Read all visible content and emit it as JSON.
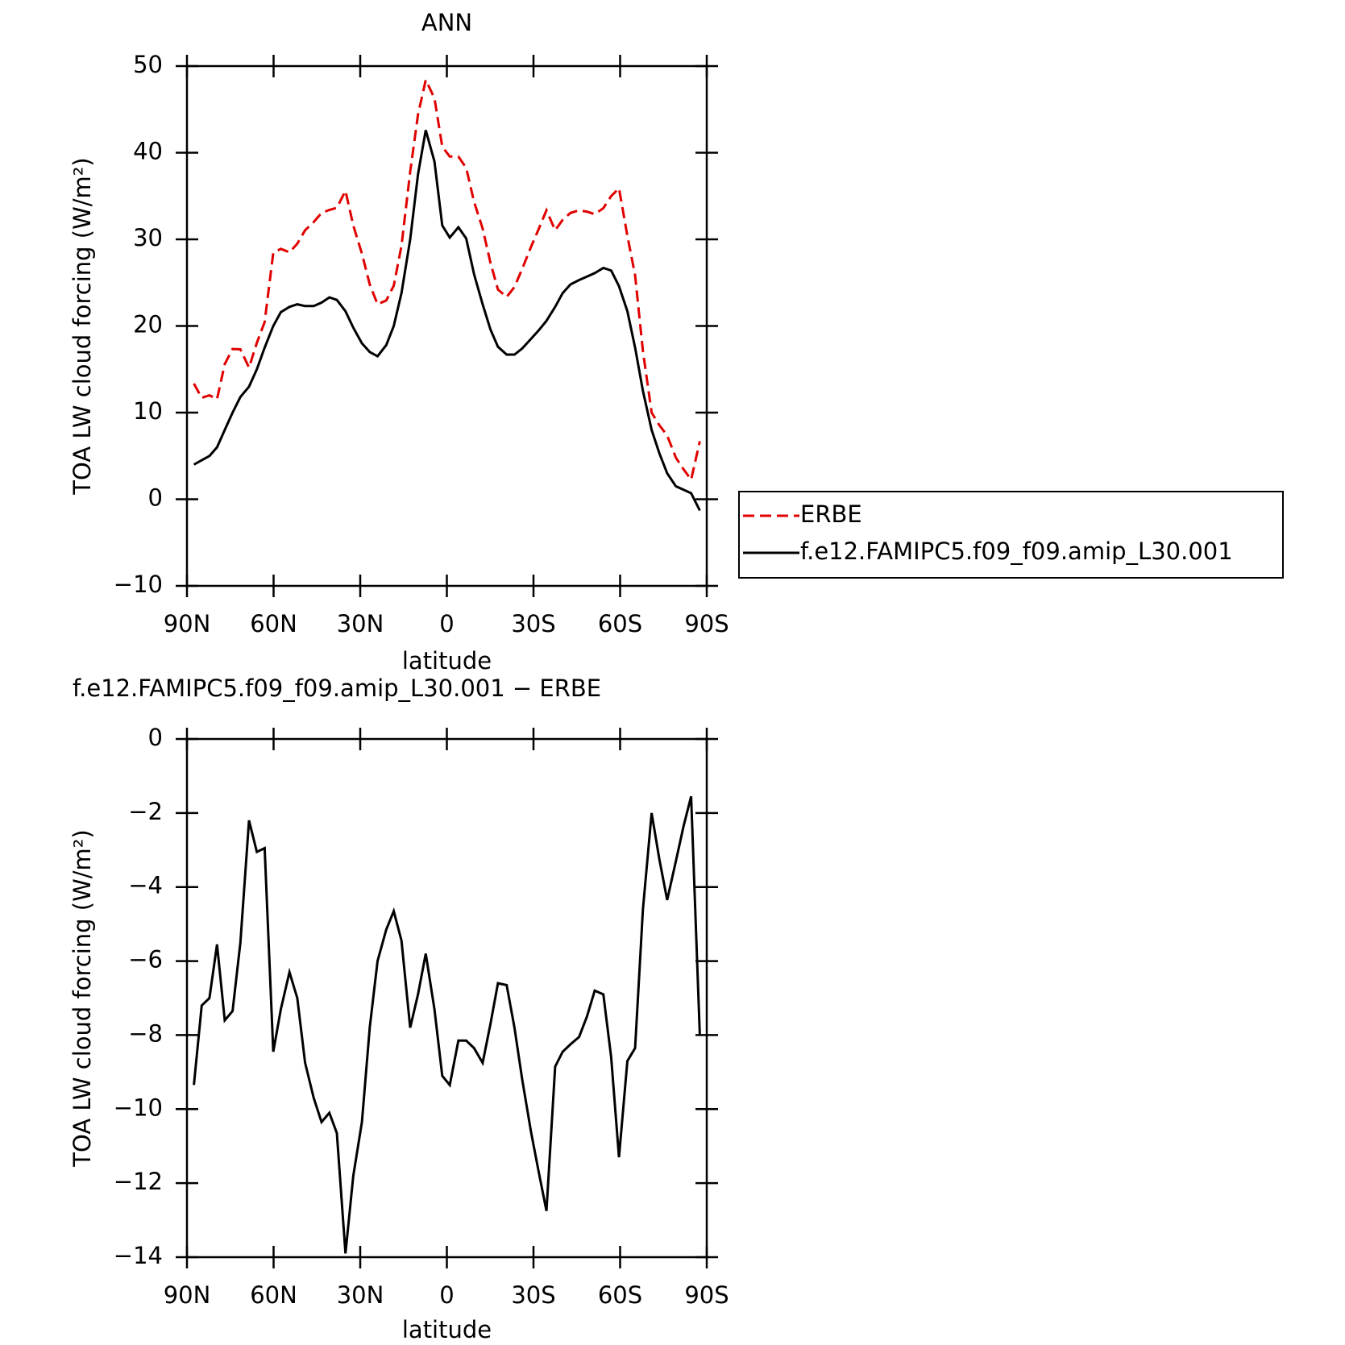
{
  "chart_data": [
    {
      "type": "line",
      "title": "ANN",
      "xlabel": "latitude",
      "ylabel": "TOA LW cloud forcing (W/m²)",
      "xlim": [
        90,
        -90
      ],
      "ylim": [
        -10,
        50
      ],
      "xticks": [
        {
          "value": 90,
          "label": "90N"
        },
        {
          "value": 60,
          "label": "60N"
        },
        {
          "value": 30,
          "label": "30N"
        },
        0,
        {
          "value": -30,
          "label": "30S"
        },
        {
          "value": -60,
          "label": "60S"
        },
        {
          "value": -90,
          "label": "90S"
        }
      ],
      "yticks": [
        {
          "value": -10,
          "label": "−10"
        },
        0,
        10,
        20,
        30,
        40,
        50
      ],
      "legend_position": "right",
      "x": [
        87.6,
        84.9,
        82.2,
        79.6,
        76.9,
        74.2,
        71.5,
        68.5,
        65.8,
        63.1,
        60.1,
        57.5,
        54.5,
        51.8,
        49.1,
        46.1,
        43.4,
        40.7,
        38.1,
        35.1,
        32.4,
        29.4,
        26.7,
        24.0,
        21.0,
        18.4,
        15.7,
        12.7,
        10.0,
        7.3,
        4.3,
        1.6,
        -1.0,
        -4.0,
        -6.7,
        -9.4,
        -12.4,
        -15.1,
        -17.7,
        -20.7,
        -23.4,
        -26.1,
        -29.1,
        -31.8,
        -34.5,
        -37.5,
        -40.1,
        -42.8,
        -45.8,
        -48.5,
        -51.2,
        -54.2,
        -56.9,
        -59.6,
        -62.5,
        -65.2,
        -67.9,
        -70.9,
        -73.6,
        -76.3,
        -79.3,
        -82.0,
        -84.6,
        -87.6
      ],
      "series": [
        {
          "name": "ERBE",
          "color": "#e00000",
          "dash": "dashed",
          "values": [
            13.35,
            11.7,
            12.0,
            11.55,
            15.6,
            17.35,
            17.3,
            15.2,
            18.05,
            20.45,
            28.45,
            28.9,
            28.5,
            29.5,
            31.05,
            32.0,
            33.05,
            33.4,
            33.65,
            35.6,
            31.6,
            28.35,
            24.8,
            22.5,
            22.95,
            24.65,
            29.25,
            37.8,
            44.4,
            48.4,
            46.3,
            40.7,
            39.55,
            39.55,
            38.25,
            34.35,
            31.25,
            27.3,
            24.2,
            23.35,
            24.5,
            26.6,
            29.1,
            31.2,
            33.35,
            31.05,
            32.25,
            33.05,
            33.35,
            33.2,
            32.9,
            33.6,
            35.0,
            35.9,
            30.4,
            25.85,
            17.1,
            10.0,
            8.55,
            7.35,
            4.8,
            3.45,
            2.25,
            6.7
          ]
        },
        {
          "name": "f.e12.FAMIPC5.f09_f09.amip_L30.001",
          "color": "#000000",
          "dash": "solid",
          "values": [
            4.0,
            4.5,
            5.0,
            6.0,
            8.0,
            10.0,
            11.8,
            13.0,
            15.0,
            17.5,
            20.0,
            21.6,
            22.2,
            22.5,
            22.3,
            22.3,
            22.7,
            23.3,
            23.0,
            21.7,
            19.8,
            18.0,
            17.0,
            16.5,
            17.8,
            20.0,
            23.8,
            30.0,
            37.5,
            42.6,
            39.0,
            31.6,
            30.2,
            31.4,
            30.1,
            26.0,
            22.5,
            19.6,
            17.6,
            16.7,
            16.7,
            17.4,
            18.5,
            19.5,
            20.6,
            22.2,
            23.8,
            24.8,
            25.3,
            25.7,
            26.1,
            26.7,
            26.4,
            24.6,
            21.7,
            17.5,
            12.5,
            8.0,
            5.3,
            3.0,
            1.5,
            1.1,
            0.7,
            -1.3
          ]
        }
      ]
    },
    {
      "type": "line",
      "title": "f.e12.FAMIPC5.f09_f09.amip_L30.001 − ERBE",
      "xlabel": "latitude",
      "ylabel": "TOA LW cloud forcing (W/m²)",
      "xlim": [
        90,
        -90
      ],
      "ylim": [
        -14,
        0
      ],
      "xticks": [
        {
          "value": 90,
          "label": "90N"
        },
        {
          "value": 60,
          "label": "60N"
        },
        {
          "value": 30,
          "label": "30N"
        },
        0,
        {
          "value": -30,
          "label": "30S"
        },
        {
          "value": -60,
          "label": "60S"
        },
        {
          "value": -90,
          "label": "90S"
        }
      ],
      "yticks": [
        {
          "value": -14,
          "label": "−14"
        },
        {
          "value": -12,
          "label": "−12"
        },
        {
          "value": -10,
          "label": "−10"
        },
        {
          "value": -8,
          "label": "−8"
        },
        {
          "value": -6,
          "label": "−6"
        },
        {
          "value": -4,
          "label": "−4"
        },
        {
          "value": -2,
          "label": "−2"
        },
        0
      ],
      "x": [
        87.6,
        84.9,
        82.2,
        79.6,
        76.9,
        74.2,
        71.5,
        68.5,
        65.8,
        63.1,
        60.1,
        57.5,
        54.5,
        51.8,
        49.1,
        46.1,
        43.4,
        40.7,
        38.1,
        35.1,
        32.4,
        29.4,
        26.7,
        24.0,
        21.0,
        18.4,
        15.7,
        12.7,
        10.0,
        7.3,
        4.3,
        1.6,
        -1.0,
        -4.0,
        -6.7,
        -9.4,
        -12.4,
        -15.1,
        -17.7,
        -20.7,
        -23.4,
        -26.1,
        -29.1,
        -31.8,
        -34.5,
        -37.5,
        -40.1,
        -42.8,
        -45.8,
        -48.5,
        -51.2,
        -54.2,
        -56.9,
        -59.6,
        -62.5,
        -65.2,
        -67.9,
        -70.9,
        -73.6,
        -76.3,
        -79.3,
        -82.0,
        -84.6,
        -87.6
      ],
      "series": [
        {
          "color": "#000000",
          "dash": "solid",
          "values": [
            -9.35,
            -7.2,
            -7.0,
            -5.55,
            -7.6,
            -7.35,
            -5.5,
            -2.2,
            -3.05,
            -2.95,
            -8.45,
            -7.3,
            -6.3,
            -7.0,
            -8.75,
            -9.7,
            -10.35,
            -10.1,
            -10.65,
            -13.9,
            -11.8,
            -10.35,
            -7.8,
            -6.0,
            -5.15,
            -4.65,
            -5.45,
            -7.8,
            -6.9,
            -5.8,
            -7.3,
            -9.1,
            -9.35,
            -8.15,
            -8.15,
            -8.35,
            -8.75,
            -7.7,
            -6.6,
            -6.65,
            -7.8,
            -9.2,
            -10.6,
            -11.7,
            -12.75,
            -8.85,
            -8.45,
            -8.25,
            -8.05,
            -7.5,
            -6.8,
            -6.9,
            -8.6,
            -11.3,
            -8.7,
            -8.35,
            -4.6,
            -2.0,
            -3.25,
            -4.35,
            -3.3,
            -2.35,
            -1.55,
            -8.0
          ]
        }
      ]
    }
  ]
}
